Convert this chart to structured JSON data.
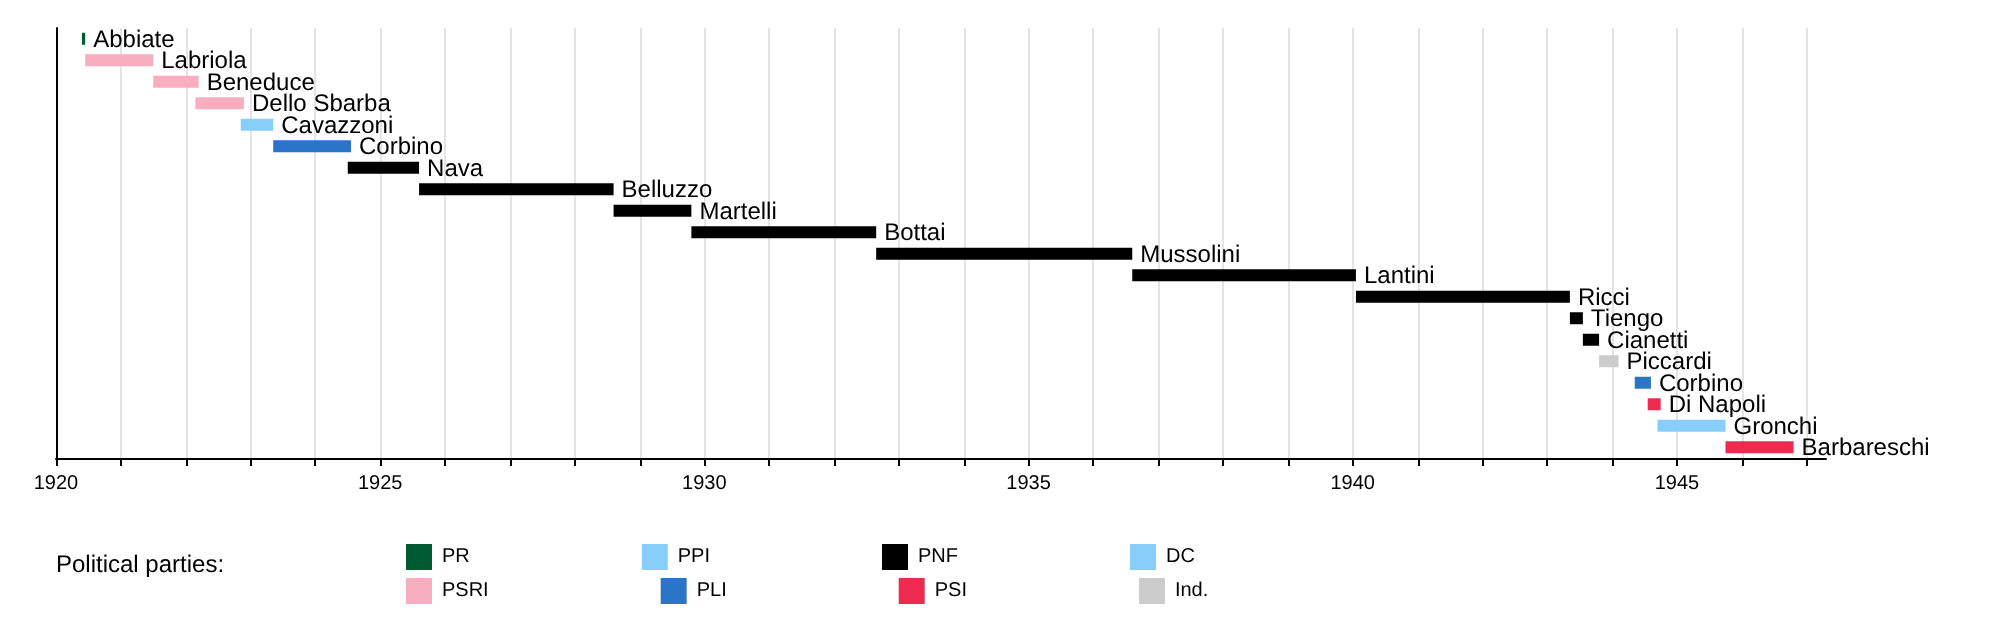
{
  "chart_data": {
    "type": "bar",
    "orientation": "horizontal",
    "stacked": true,
    "legend_title": "Political parties:",
    "legend": "bottom",
    "grid": "x",
    "tick_labels": "x",
    "categories": [
      "Abbiate",
      "Labriola",
      "Beneduce",
      "Dello Sbarba",
      "Cavazzoni",
      "Corbino",
      "Nava",
      "Belluzzo",
      "Martelli",
      "Bottai",
      "Mussolini",
      "Lantini",
      "Ricci",
      "Tiengo",
      "Cianetti",
      "Piccardi",
      "Corbino",
      "Di Napoli",
      "Gronchi",
      "Barbareschi"
    ],
    "series": [
      {
        "name": "PR",
        "color": "#005c30",
        "base": [
          1920.4,
          null,
          null,
          null,
          null,
          null,
          null,
          null,
          null,
          null,
          null,
          null,
          null,
          null,
          null,
          null,
          null,
          null,
          null,
          null
        ],
        "values": [
          0.05,
          null,
          null,
          null,
          null,
          null,
          null,
          null,
          null,
          null,
          null,
          null,
          null,
          null,
          null,
          null,
          null,
          null,
          null,
          null
        ]
      },
      {
        "name": "PSRI",
        "color": "#f8aebf",
        "base": [
          null,
          1920.45,
          1921.5,
          1922.15,
          null,
          null,
          null,
          null,
          null,
          null,
          null,
          null,
          null,
          null,
          null,
          null,
          null,
          null,
          null,
          null
        ],
        "values": [
          null,
          1.05,
          0.7,
          0.75,
          null,
          null,
          null,
          null,
          null,
          null,
          null,
          null,
          null,
          null,
          null,
          null,
          null,
          null,
          null,
          null
        ]
      },
      {
        "name": "PPI",
        "color": "#87cefa",
        "base": [
          null,
          null,
          null,
          null,
          1922.85,
          null,
          null,
          null,
          null,
          null,
          null,
          null,
          null,
          null,
          null,
          null,
          null,
          null,
          null,
          null
        ],
        "values": [
          null,
          null,
          null,
          null,
          0.5,
          null,
          null,
          null,
          null,
          null,
          null,
          null,
          null,
          null,
          null,
          null,
          null,
          null,
          null,
          null
        ]
      },
      {
        "name": "PLI",
        "color": "#2a75c8",
        "base": [
          null,
          null,
          null,
          null,
          null,
          1923.35,
          null,
          null,
          null,
          null,
          null,
          null,
          null,
          null,
          null,
          null,
          1944.35,
          null,
          null,
          null
        ],
        "values": [
          null,
          null,
          null,
          null,
          null,
          1.2,
          null,
          null,
          null,
          null,
          null,
          null,
          null,
          null,
          null,
          null,
          0.25,
          null,
          null,
          null
        ]
      },
      {
        "name": "PNF",
        "color": "#000000",
        "base": [
          null,
          null,
          null,
          null,
          null,
          null,
          1924.5,
          1925.6,
          1928.6,
          1929.8,
          1932.65,
          1936.6,
          1940.05,
          1943.35,
          1943.55,
          null,
          null,
          null,
          null,
          null
        ],
        "values": [
          null,
          null,
          null,
          null,
          null,
          null,
          1.1,
          3.0,
          1.2,
          2.85,
          3.95,
          3.45,
          3.3,
          0.2,
          0.25,
          null,
          null,
          null,
          null,
          null
        ]
      },
      {
        "name": "PSI",
        "color": "#ee2a50",
        "base": [
          null,
          null,
          null,
          null,
          null,
          null,
          null,
          null,
          null,
          null,
          null,
          null,
          null,
          null,
          null,
          null,
          null,
          1944.55,
          null,
          1945.75
        ],
        "values": [
          null,
          null,
          null,
          null,
          null,
          null,
          null,
          null,
          null,
          null,
          null,
          null,
          null,
          null,
          null,
          null,
          null,
          0.2,
          null,
          1.05
        ]
      },
      {
        "name": "DC",
        "color": "#87cefa",
        "base": [
          null,
          null,
          null,
          null,
          null,
          null,
          null,
          null,
          null,
          null,
          null,
          null,
          null,
          null,
          null,
          null,
          null,
          null,
          1944.7,
          null
        ],
        "values": [
          null,
          null,
          null,
          null,
          null,
          null,
          null,
          null,
          null,
          null,
          null,
          null,
          null,
          null,
          null,
          null,
          null,
          null,
          1.05,
          null
        ]
      },
      {
        "name": "Ind.",
        "color": "#cccccc",
        "base": [
          null,
          null,
          null,
          null,
          null,
          null,
          null,
          null,
          null,
          null,
          null,
          null,
          null,
          null,
          null,
          1943.8,
          null,
          null,
          null,
          null
        ],
        "values": [
          null,
          null,
          null,
          null,
          null,
          null,
          null,
          null,
          null,
          null,
          null,
          null,
          null,
          null,
          null,
          0.3,
          null,
          null,
          null,
          null
        ]
      }
    ],
    "xlim": [
      1920,
      1947.3
    ],
    "xticks": [
      1920,
      {
        "value": 1921,
        "label": null
      },
      {
        "value": 1922,
        "label": null
      },
      {
        "value": 1923,
        "label": null
      },
      {
        "value": 1924,
        "label": null
      },
      1925,
      {
        "value": 1926,
        "label": null
      },
      {
        "value": 1927,
        "label": null
      },
      {
        "value": 1928,
        "label": null
      },
      {
        "value": 1929,
        "label": null
      },
      1930,
      {
        "value": 1931,
        "label": null
      },
      {
        "value": 1932,
        "label": null
      },
      {
        "value": 1933,
        "label": null
      },
      {
        "value": 1934,
        "label": null
      },
      1935,
      {
        "value": 1936,
        "label": null
      },
      {
        "value": 1937,
        "label": null
      },
      {
        "value": 1938,
        "label": null
      },
      {
        "value": 1939,
        "label": null
      },
      1940,
      {
        "value": 1941,
        "label": null
      },
      {
        "value": 1942,
        "label": null
      },
      {
        "value": 1943,
        "label": null
      },
      {
        "value": 1944,
        "label": null
      },
      1945,
      {
        "value": 1946,
        "label": null
      },
      {
        "value": 1947,
        "label": null
      }
    ]
  }
}
